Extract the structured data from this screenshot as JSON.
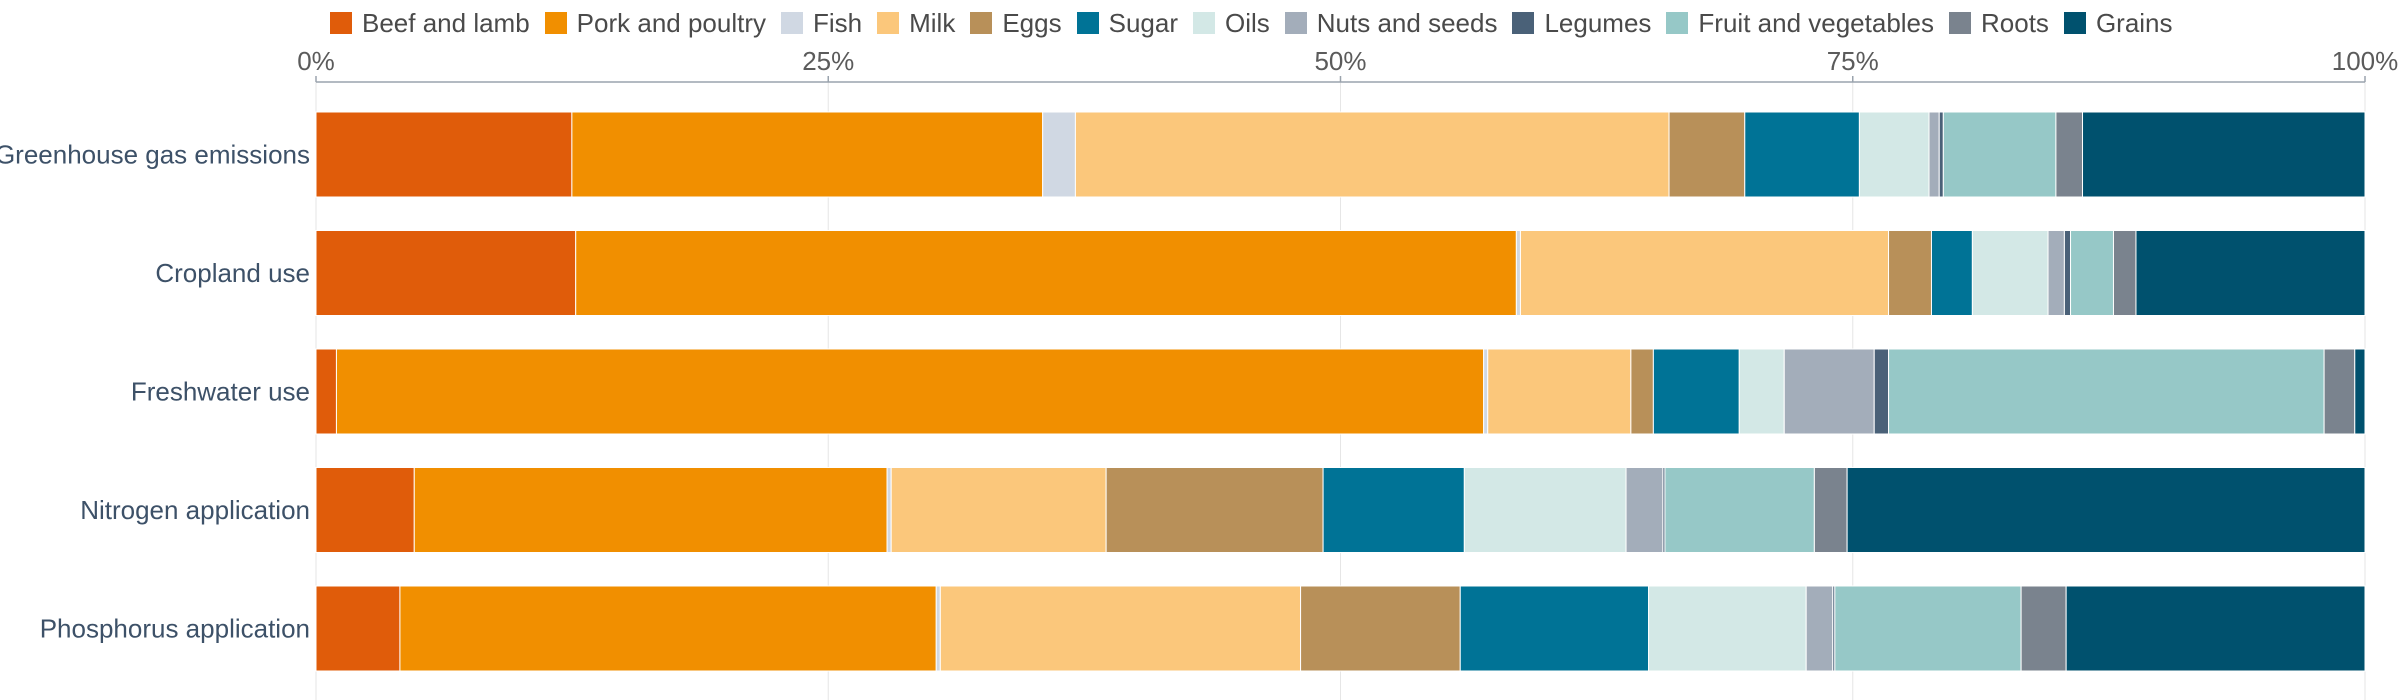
{
  "chart_data": {
    "type": "bar",
    "orientation": "horizontal",
    "stacked": true,
    "percent": true,
    "title": "",
    "xlabel": "",
    "ylabel": "",
    "xlim": [
      0,
      100
    ],
    "x_ticks": [
      "0%",
      "25%",
      "50%",
      "75%",
      "100%"
    ],
    "x_tick_values": [
      0,
      25,
      50,
      75,
      100
    ],
    "axis_position": "top",
    "legend_position": "top",
    "grid": true,
    "categories": [
      "Greenhouse gas emissions",
      "Cropland use",
      "Freshwater use",
      "Nitrogen application",
      "Phosphorus application"
    ],
    "series": [
      {
        "name": "Beef and lamb",
        "color": "#e05c0a",
        "values": [
          12.5,
          12.7,
          1.0,
          4.8,
          4.1
        ]
      },
      {
        "name": "Pork and poultry",
        "color": "#f18f00",
        "values": [
          23.0,
          46.0,
          56.1,
          23.1,
          26.2
        ]
      },
      {
        "name": "Fish",
        "color": "#d0d8e3",
        "values": [
          1.6,
          0.2,
          0.2,
          0.2,
          0.2
        ]
      },
      {
        "name": "Milk",
        "color": "#fbc77b",
        "values": [
          29.0,
          18.0,
          7.0,
          10.5,
          17.6
        ]
      },
      {
        "name": "Eggs",
        "color": "#b89059",
        "values": [
          3.7,
          2.1,
          1.1,
          10.6,
          7.8
        ]
      },
      {
        "name": "Sugar",
        "color": "#007396",
        "values": [
          5.6,
          2.0,
          4.2,
          6.9,
          9.2
        ]
      },
      {
        "name": "Oils",
        "color": "#d3e8e6",
        "values": [
          3.4,
          3.7,
          2.2,
          7.9,
          7.7
        ]
      },
      {
        "name": "Nuts and seeds",
        "color": "#a3adba",
        "values": [
          0.5,
          0.8,
          4.4,
          1.8,
          1.3
        ]
      },
      {
        "name": "Legumes",
        "color": "#4a6178",
        "values": [
          0.2,
          0.3,
          0.7,
          0.1,
          0.1
        ]
      },
      {
        "name": "Fruit and vegetables",
        "color": "#96c8c7",
        "values": [
          5.5,
          2.1,
          21.3,
          7.3,
          9.1
        ]
      },
      {
        "name": "Roots",
        "color": "#7a838e",
        "values": [
          1.3,
          1.1,
          1.5,
          1.6,
          2.2
        ]
      },
      {
        "name": "Grains",
        "color": "#00516e",
        "values": [
          13.8,
          11.2,
          0.5,
          25.3,
          14.6
        ]
      }
    ]
  }
}
